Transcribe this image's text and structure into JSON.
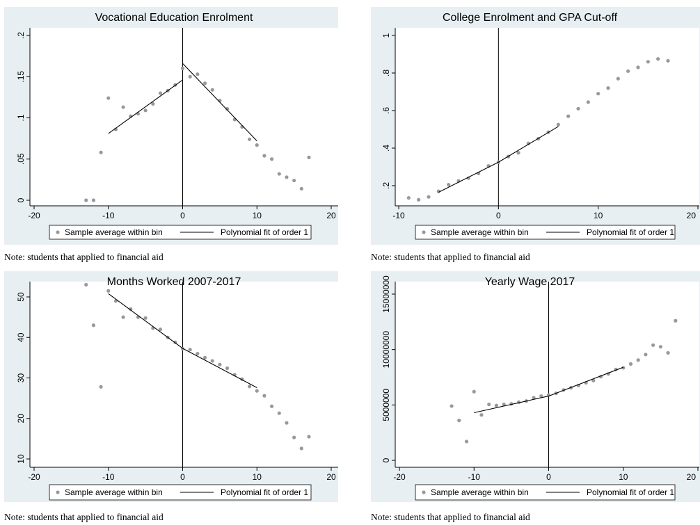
{
  "chart_data": [
    {
      "type": "scatter",
      "title": "Vocational Education Enrolment",
      "xlim": [
        -20,
        20
      ],
      "ylim": [
        0,
        0.2
      ],
      "xticks": [
        -20,
        -10,
        0,
        10,
        20
      ],
      "yticks": [
        0,
        0.05,
        0.1,
        0.15,
        0.2
      ],
      "ytick_labels": [
        "0",
        ".05",
        ".1",
        ".15",
        ".2"
      ],
      "cutoff_x": 0,
      "series": [
        {
          "name": "Sample average within bin",
          "color": "#999999",
          "x": [
            -13,
            -12,
            -11,
            -10,
            -9,
            -8,
            -7,
            -6,
            -5,
            -4,
            -3,
            -2,
            -1,
            0,
            1,
            2,
            3,
            4,
            5,
            6,
            7,
            8,
            9,
            10,
            11,
            12,
            13,
            14,
            15,
            16,
            17
          ],
          "y": [
            0,
            0,
            0.058,
            0.124,
            0.086,
            0.113,
            0.102,
            0.105,
            0.109,
            0.117,
            0.13,
            0.133,
            0.14,
            0.16,
            0.15,
            0.153,
            0.142,
            0.134,
            0.121,
            0.111,
            0.098,
            0.089,
            0.074,
            0.067,
            0.054,
            0.05,
            0.032,
            0.028,
            0.024,
            0.014,
            0.052
          ]
        },
        {
          "name": "Polynomial fit of order 1",
          "color": "#000000",
          "segments": [
            [
              [
                -10,
                0.081
              ],
              [
                0,
                0.146
              ]
            ],
            [
              [
                0,
                0.166
              ],
              [
                10,
                0.072
              ]
            ]
          ]
        }
      ],
      "note": "Note: students that applied to financial aid"
    },
    {
      "type": "scatter",
      "title": "College Enrolment and GPA Cut-off",
      "xlim": [
        -10,
        20
      ],
      "ylim": [
        0.12,
        1
      ],
      "xticks": [
        -10,
        0,
        10,
        20
      ],
      "yticks": [
        0.2,
        0.4,
        0.6,
        0.8,
        1
      ],
      "ytick_labels": [
        ".2",
        ".4",
        ".6",
        ".8",
        "1"
      ],
      "cutoff_x": 0,
      "series": [
        {
          "name": "Sample average within bin",
          "color": "#999999",
          "x": [
            -9,
            -8,
            -7,
            -6,
            -5,
            -4,
            -3,
            -2,
            -1,
            0,
            1,
            2,
            3,
            4,
            5,
            6,
            7,
            8,
            9,
            10,
            11,
            12,
            13,
            14,
            15,
            16,
            17
          ],
          "y": [
            0.135,
            0.125,
            0.14,
            0.17,
            0.205,
            0.225,
            0.24,
            0.265,
            0.305,
            0.325,
            0.355,
            0.375,
            0.425,
            0.45,
            0.485,
            0.525,
            0.57,
            0.61,
            0.645,
            0.69,
            0.72,
            0.77,
            0.81,
            0.83,
            0.86,
            0.875,
            0.865
          ]
        },
        {
          "name": "Polynomial fit of order 1",
          "color": "#000000",
          "segments": [
            [
              [
                -6,
                0.165
              ],
              [
                0,
                0.325
              ]
            ],
            [
              [
                0,
                0.325
              ],
              [
                6,
                0.515
              ]
            ]
          ]
        }
      ],
      "note": "Note: students that applied to financial aid"
    },
    {
      "type": "scatter",
      "title": "Months Worked 2007-2017",
      "xlim": [
        -20,
        20
      ],
      "ylim": [
        10,
        54
      ],
      "xticks": [
        -20,
        -10,
        0,
        10,
        20
      ],
      "yticks": [
        10,
        20,
        30,
        40,
        50
      ],
      "ytick_labels": [
        "10",
        "20",
        "30",
        "40",
        "50"
      ],
      "cutoff_x": 0,
      "series": [
        {
          "name": "Sample average within bin",
          "color": "#999999",
          "x": [
            -13,
            -12,
            -11,
            -10,
            -9,
            -8,
            -7,
            -6,
            -5,
            -4,
            -3,
            -2,
            -1,
            0,
            1,
            2,
            3,
            4,
            5,
            6,
            7,
            8,
            9,
            10,
            11,
            12,
            13,
            14,
            15,
            16,
            17
          ],
          "y": [
            53,
            43,
            27.8,
            51.5,
            49,
            45,
            47,
            45,
            44.8,
            42.3,
            42,
            40,
            38.8,
            37.2,
            37,
            36,
            35,
            34.2,
            33.3,
            32.4,
            30.8,
            29.7,
            27.9,
            26.8,
            25.6,
            23,
            21.3,
            18.9,
            15.3,
            12.6,
            15.5
          ]
        },
        {
          "name": "Polynomial fit of order 1",
          "color": "#000000",
          "segments": [
            [
              [
                -10,
                50.8
              ],
              [
                0,
                37.3
              ]
            ],
            [
              [
                0,
                37.3
              ],
              [
                10,
                27.6
              ]
            ]
          ]
        }
      ],
      "note": "Note: students that applied to financial aid"
    },
    {
      "type": "scatter",
      "title": "Yearly Wage 2017",
      "xlim": [
        -20,
        20
      ],
      "ylim": [
        0,
        15000000
      ],
      "xticks": [
        -20,
        -10,
        0,
        10,
        20
      ],
      "yticks": [
        0,
        5000000,
        10000000,
        15000000
      ],
      "ytick_labels": [
        "0",
        "5000000",
        "10000000",
        "15000000"
      ],
      "cutoff_x": 0,
      "series": [
        {
          "name": "Sample average within bin",
          "color": "#999999",
          "x": [
            -13,
            -12,
            -11,
            -10,
            -9,
            -8,
            -7,
            -6,
            -5,
            -4,
            -3,
            -2,
            -1,
            0,
            1,
            2,
            3,
            4,
            5,
            6,
            7,
            8,
            9,
            10,
            11,
            12,
            13,
            14,
            15,
            16,
            17
          ],
          "y": [
            4900000,
            3600000,
            1700000,
            6200000,
            4100000,
            5050000,
            4950000,
            5050000,
            5100000,
            5250000,
            5350000,
            5650000,
            5800000,
            5900000,
            6050000,
            6350000,
            6550000,
            6750000,
            7000000,
            7200000,
            7550000,
            7800000,
            8200000,
            8350000,
            8700000,
            9050000,
            9550000,
            10400000,
            10250000,
            9700000,
            12600000
          ]
        },
        {
          "name": "Polynomial fit of order 1",
          "color": "#000000",
          "segments": [
            [
              [
                -10,
                4300000
              ],
              [
                0,
                5800000
              ]
            ],
            [
              [
                0,
                5800000
              ],
              [
                10,
                8400000
              ]
            ]
          ]
        }
      ],
      "note": "Note: students that applied to financial aid"
    }
  ],
  "legend": {
    "scatter_label": "Sample average within bin",
    "line_label": "Polynomial fit of order 1"
  },
  "colors": {
    "panel_background": "#e8eff3",
    "plot_background": "#ffffff",
    "marker": "#999999",
    "fit_line": "#000000"
  }
}
